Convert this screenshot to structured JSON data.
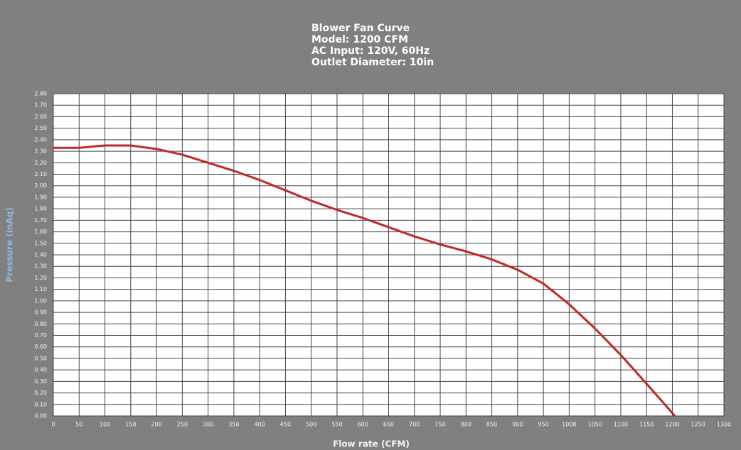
{
  "chart_data": {
    "type": "line",
    "title": [
      "Blower Fan Curve",
      "Model: 1200 CFM",
      "AC Input: 120V, 60Hz",
      "Outlet Diameter: 10in"
    ],
    "x_label": "Flow rate (CFM)",
    "y_label": "Pressure (inAq)",
    "x": [
      0,
      50,
      100,
      150,
      200,
      250,
      300,
      350,
      400,
      450,
      500,
      550,
      600,
      650,
      700,
      750,
      800,
      850,
      900,
      950,
      1000,
      1050,
      1100,
      1150,
      1205
    ],
    "values": [
      2.33,
      2.33,
      2.35,
      2.35,
      2.32,
      2.27,
      2.2,
      2.13,
      2.05,
      1.96,
      1.87,
      1.79,
      1.72,
      1.64,
      1.56,
      1.49,
      1.43,
      1.36,
      1.27,
      1.15,
      0.97,
      0.76,
      0.53,
      0.28,
      0.0
    ],
    "color": "#c0282a",
    "xlim": [
      0,
      1300
    ],
    "ylim": [
      0,
      2.8
    ],
    "xticks": [
      0,
      50,
      100,
      150,
      200,
      250,
      300,
      350,
      400,
      450,
      500,
      550,
      600,
      650,
      700,
      750,
      800,
      850,
      900,
      950,
      1000,
      1050,
      1100,
      1150,
      1200,
      1250,
      1300
    ],
    "yticks": [
      {
        "value": 0,
        "label": "0.00"
      },
      {
        "value": 0.1,
        "label": "0.10"
      },
      {
        "value": 0.2,
        "label": "0.20"
      },
      {
        "value": 0.3,
        "label": "0.30"
      },
      {
        "value": 0.4,
        "label": "0.40"
      },
      {
        "value": 0.5,
        "label": "0.50"
      },
      {
        "value": 0.6,
        "label": "0.60"
      },
      {
        "value": 0.7,
        "label": "0.70"
      },
      {
        "value": 0.8,
        "label": "0.80"
      },
      {
        "value": 0.9,
        "label": "0.90"
      },
      {
        "value": 1,
        "label": "1.00"
      },
      {
        "value": 1.1,
        "label": "1.10"
      },
      {
        "value": 1.2,
        "label": "1.20"
      },
      {
        "value": 1.3,
        "label": "1.30"
      },
      {
        "value": 1.4,
        "label": "1.40"
      },
      {
        "value": 1.5,
        "label": "1.50"
      },
      {
        "value": 1.6,
        "label": "1.60"
      },
      {
        "value": 1.7,
        "label": "1.70"
      },
      {
        "value": 1.8,
        "label": "1.80"
      },
      {
        "value": 1.9,
        "label": "1.90"
      },
      {
        "value": 2,
        "label": "2.00"
      },
      {
        "value": 2.1,
        "label": "2.10"
      },
      {
        "value": 2.2,
        "label": "2.20"
      },
      {
        "value": 2.3,
        "label": "2.30"
      },
      {
        "value": 2.4,
        "label": "2.40"
      },
      {
        "value": 2.5,
        "label": "2.50"
      },
      {
        "value": 2.6,
        "label": "2.60"
      },
      {
        "value": 2.7,
        "label": "2.70"
      },
      {
        "value": 2.8,
        "label": "2.80"
      }
    ],
    "grid": true
  }
}
